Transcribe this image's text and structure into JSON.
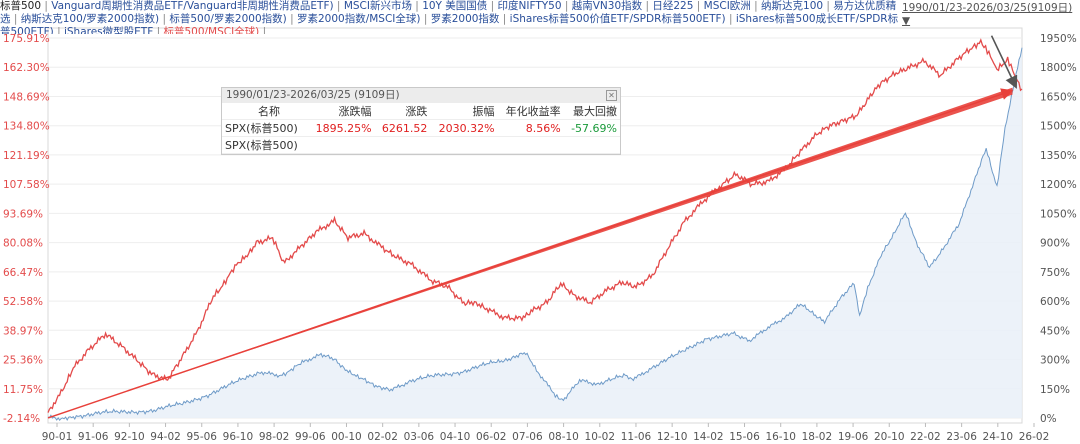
{
  "header": {
    "items": [
      "标普500",
      "Vanguard周期性消费品ETF/Vanguard非周期性消费品ETF)",
      "MSCI新兴市场",
      "10Y 美国国债",
      "印度NIFTY50",
      "越南VN30指数",
      "日经225",
      "MSCI欧洲",
      "纳斯达克100",
      "易方达优质精选",
      "纳斯达克100/罗素2000指数)",
      "标普500/罗素2000指数)",
      "罗素2000指数/MSCI全球)",
      "罗素2000指数",
      "iShares标普500价值ETF/SPDR标普500ETF)",
      "iShares标普500成长ETF/SPDR标普500ETF)",
      "iShares微型股ETF",
      "标普500/MSCI全球)"
    ],
    "date_range": "1990/01/23-2026/03/25(9109日)"
  },
  "stats_panel": {
    "title": "1990/01/23-2026/03/25 (9109日)",
    "columns": [
      "名称",
      "涨跌幅",
      "涨跌",
      "振幅",
      "年化收益率",
      "最大回撤"
    ],
    "rows": [
      [
        "SPX(标普500)",
        "1895.25%",
        "6261.52",
        "2030.32%",
        "8.56%",
        "-57.69%"
      ],
      [
        "SPX(标普500)",
        "",
        "",
        "",
        "",
        ""
      ]
    ]
  },
  "chart_data": {
    "type": "line",
    "x_ticks": [
      "90-01",
      "91-06",
      "92-10",
      "94-02",
      "95-06",
      "96-10",
      "98-02",
      "99-06",
      "00-10",
      "02-02",
      "03-06",
      "04-10",
      "06-02",
      "07-06",
      "08-10",
      "10-02",
      "11-06",
      "12-10",
      "14-02",
      "15-06",
      "16-10",
      "18-02",
      "19-06",
      "20-10",
      "22-02",
      "23-06",
      "24-10",
      "26-02"
    ],
    "left_axis_ticks": [
      "175.91%",
      "162.30%",
      "148.69%",
      "134.80%",
      "121.19%",
      "107.58%",
      "93.69%",
      "80.08%",
      "66.47%",
      "52.58%",
      "38.97%",
      "25.36%",
      "11.75%",
      "-2.14%"
    ],
    "right_axis_ticks": [
      "1950%",
      "1800%",
      "1650%",
      "1500%",
      "1350%",
      "1200%",
      "1050%",
      "900%",
      "750%",
      "600%",
      "450%",
      "300%",
      "150%",
      "0%"
    ],
    "ylim_left": [
      -2.14,
      175.91
    ],
    "ylim_right": [
      0,
      1950
    ],
    "series": [
      {
        "axis": "right",
        "color": "#6f9bc8",
        "x": [
          1990.06,
          1990.6,
          1991.0,
          1992.0,
          1993.0,
          1994.0,
          1995.0,
          1996.0,
          1997.0,
          1998.0,
          1998.7,
          1999.5,
          2000.2,
          2000.7,
          2001.5,
          2002.8,
          2003.5,
          2004.5,
          2005.5,
          2006.5,
          2007.8,
          2008.2,
          2008.9,
          2009.2,
          2009.8,
          2010.5,
          2011.5,
          2011.8,
          2012.5,
          2013.5,
          2014.5,
          2015.5,
          2016.1,
          2016.8,
          2017.5,
          2018.0,
          2018.9,
          2019.5,
          2020.0,
          2020.2,
          2020.5,
          2021.0,
          2021.9,
          2022.3,
          2022.8,
          2023.3,
          2023.9,
          2024.5,
          2024.9,
          2025.3,
          2025.6,
          2025.9,
          2026.23
        ],
        "y": [
          0,
          -10,
          10,
          25,
          32,
          40,
          70,
          120,
          180,
          240,
          220,
          280,
          320,
          300,
          210,
          140,
          185,
          220,
          240,
          280,
          330,
          250,
          120,
          90,
          190,
          170,
          220,
          200,
          260,
          330,
          410,
          430,
          390,
          460,
          520,
          580,
          500,
          620,
          690,
          530,
          660,
          840,
          1050,
          900,
          780,
          870,
          1000,
          1230,
          1380,
          1190,
          1480,
          1700,
          1900
        ]
      },
      {
        "axis": "left",
        "color": "#e34b4b",
        "x": [
          1990.06,
          1990.6,
          1991.0,
          1991.6,
          1992.2,
          1992.8,
          1993.4,
          1993.9,
          1994.5,
          1995.0,
          1995.6,
          1996.2,
          1997.0,
          1997.8,
          1998.4,
          1998.8,
          1999.5,
          2000.0,
          2000.7,
          2001.2,
          2001.8,
          2002.5,
          2003.0,
          2003.6,
          2004.3,
          2004.9,
          2005.5,
          2006.3,
          2007.0,
          2007.6,
          2008.0,
          2008.6,
          2009.1,
          2009.6,
          2010.2,
          2010.8,
          2011.4,
          2011.9,
          2012.5,
          2013.1,
          2013.7,
          2014.4,
          2015.1,
          2015.6,
          2016.2,
          2016.8,
          2017.5,
          2018.0,
          2018.6,
          2019.1,
          2019.6,
          2020.1,
          2020.6,
          2021.0,
          2021.5,
          2022.0,
          2022.6,
          2023.2,
          2023.8,
          2024.3,
          2024.7,
          2025.0,
          2025.3,
          2025.7,
          2026.0,
          2026.23
        ],
        "y": [
          0,
          10,
          22,
          31,
          38,
          32,
          25,
          18,
          15,
          25,
          38,
          55,
          68,
          80,
          82,
          70,
          78,
          85,
          90,
          83,
          85,
          78,
          74,
          70,
          63,
          60,
          52,
          50,
          45,
          45,
          48,
          52,
          60,
          55,
          52,
          58,
          62,
          60,
          65,
          78,
          90,
          100,
          108,
          112,
          107,
          108,
          115,
          122,
          130,
          135,
          138,
          140,
          148,
          155,
          160,
          162,
          165,
          158,
          165,
          170,
          175,
          168,
          162,
          165,
          158,
          152
        ]
      }
    ],
    "annotations": [
      {
        "type": "arrow",
        "color": "#e8403a",
        "from": [
          1990.06,
          -2.1
        ],
        "to": [
          2026.1,
          151.0
        ],
        "axis": "left"
      },
      {
        "type": "arrow",
        "color": "#555555",
        "from": [
          2025.1,
          177.0
        ],
        "to": [
          2026.1,
          152.0
        ],
        "axis": "left"
      }
    ]
  }
}
